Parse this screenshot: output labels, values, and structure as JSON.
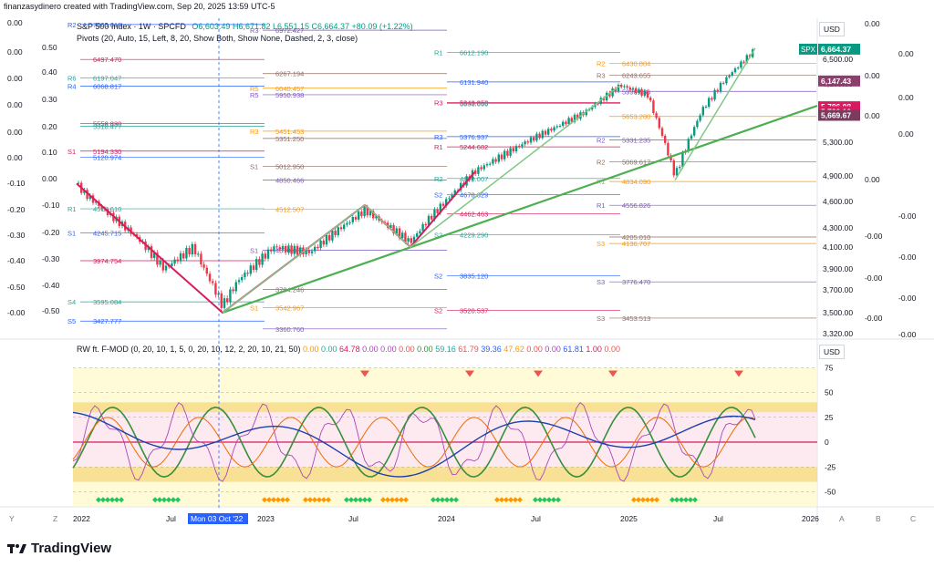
{
  "header": {
    "credit": "finanzasydinero created with TradingView.com, Sep 20, 2025 13:59 UTC-5",
    "symbol_line": "S&P 500 Index · 1W · SPCFD",
    "ohlc": "O6,603.49 H6,671.82 L6,551.15 C6,664.37 +80.09 (+1.22%)",
    "pivots_label": "Pivots (20, Auto, 15, Left, 8, 20, Show Both, Show None, Dashed, 2, 3, close)",
    "indicator_label": "RW ft. F-MOD (0, 20, 10, 1, 5, 0, 20, 10, 12, 2, 20, 10, 21, 50)",
    "indicator_values": [
      "0.00",
      "0.00",
      "64.78",
      "0.00",
      "0.00",
      "0.00",
      "0.00",
      "59.16",
      "61.79",
      "39.36",
      "47.62",
      "0.00",
      "0.00",
      "61.81",
      "1.00",
      "0.00"
    ]
  },
  "colors": {
    "bull": "#26a69a",
    "bear": "#ef5350",
    "candle_up": "#089981",
    "candle_dn": "#f23645",
    "trend_green": "#4caf50",
    "trend_magenta": "#d81b60",
    "light_green": "#81c784",
    "accent_blue": "#2962ff"
  },
  "chart_data": [
    {
      "type": "candlestick",
      "title": "S&P 500 Index",
      "interval": "1W",
      "symbol": "SPX",
      "currency": "USD",
      "last_close": 6664.37,
      "ylim": [
        3320,
        7050
      ],
      "y_ticks": [
        6500,
        6100,
        5300,
        4900,
        4600,
        4300,
        4100,
        3900,
        3700,
        3500,
        3320
      ],
      "x_ticks": [
        "2022",
        "Jul",
        "Mon 03 Oct '22",
        "2023",
        "Jul",
        "2024",
        "Jul",
        "2025",
        "Jul",
        "2026"
      ],
      "price_tags": [
        {
          "label": "SPX",
          "value": "6,664.37",
          "color": "#089981"
        },
        {
          "label": "",
          "value": "6,147.43",
          "color": "#8e3e6d"
        },
        {
          "label": "",
          "value": "5,786.08",
          "color": "#d81b60"
        },
        {
          "label": "",
          "value": "5,720.10",
          "color": "#d81b60"
        },
        {
          "label": "",
          "value": "5,669.67",
          "color": "#7b3a5e"
        }
      ],
      "pivot_levels": [
        {
          "name": "R2",
          "value": "7065.010"
        },
        {
          "name": "R3",
          "value": "6972.427"
        },
        {
          "name": "R1",
          "value": "6612.190"
        },
        {
          "name": "R2",
          "value": "6430.804"
        },
        {
          "name": "",
          "value": "6497.470"
        },
        {
          "name": "",
          "value": "6267.194"
        },
        {
          "name": "",
          "value": "6131.940"
        },
        {
          "name": "",
          "value": "5996.686"
        },
        {
          "name": "R6",
          "value": "6197.047"
        },
        {
          "name": "R5",
          "value": "6040.457"
        },
        {
          "name": "R3",
          "value": "5843.850"
        },
        {
          "name": "R3",
          "value": "6243.655"
        },
        {
          "name": "R4",
          "value": "6068.817"
        },
        {
          "name": "R5",
          "value": "5950.938"
        },
        {
          "name": "",
          "value": "5833.060"
        },
        {
          "name": "",
          "value": "5653.280"
        },
        {
          "name": "",
          "value": "5558.830"
        },
        {
          "name": "",
          "value": "5351.250"
        },
        {
          "name": "R3",
          "value": "5376.937"
        },
        {
          "name": "R2",
          "value": "5331.235"
        },
        {
          "name": "",
          "value": "5518.477"
        },
        {
          "name": "R3",
          "value": "5451.453"
        },
        {
          "name": "R1",
          "value": "5244.682"
        },
        {
          "name": "R2",
          "value": "5069.617"
        },
        {
          "name": "",
          "value": "5120.974"
        },
        {
          "name": "",
          "value": "4850.466"
        },
        {
          "name": "R2",
          "value": "4870.007"
        },
        {
          "name": "R1",
          "value": "4834.090"
        },
        {
          "name": "S1",
          "value": "5194.330"
        },
        {
          "name": "S1",
          "value": "5012.950"
        },
        {
          "name": "S2",
          "value": "4678.329"
        },
        {
          "name": "R1",
          "value": "4556.826"
        },
        {
          "name": "R1",
          "value": "4516.610"
        },
        {
          "name": "",
          "value": "4512.507"
        },
        {
          "name": "",
          "value": "4462.463"
        },
        {
          "name": "",
          "value": "4205.010"
        },
        {
          "name": "S1",
          "value": "4245.715"
        },
        {
          "name": "S1",
          "value": "4070.877"
        },
        {
          "name": "S2",
          "value": "4229.290"
        },
        {
          "name": "S3",
          "value": "4136.707"
        },
        {
          "name": "",
          "value": "3974.754"
        },
        {
          "name": "",
          "value": "3704.246"
        },
        {
          "name": "S2",
          "value": "3835.120"
        },
        {
          "name": "S3",
          "value": "3776.470"
        },
        {
          "name": "S4",
          "value": "3595.084"
        },
        {
          "name": "S1",
          "value": "3542.967"
        },
        {
          "name": "S2",
          "value": "3520.537"
        },
        {
          "name": "S3",
          "value": "3453.513"
        },
        {
          "name": "S5",
          "value": "3427.777"
        },
        {
          "name": "",
          "value": "3360.760"
        }
      ],
      "left_axis": [
        "0.50",
        "0.40",
        "0.30",
        "0.20",
        "0.10",
        "0.00",
        "-0.10",
        "-0.20",
        "-0.30",
        "-0.40",
        "-0.50"
      ],
      "right_extra_axis": [
        "0.00",
        "0.00",
        "0.00",
        "0.00",
        "0.00",
        "0.00",
        "0.00",
        "-0.00",
        "-0.00",
        "-0.00",
        "-0.00",
        "-0.00",
        "-0.00",
        "-0.00"
      ]
    },
    {
      "type": "line",
      "title": "RW ft. F-MOD",
      "ylim": [
        -60,
        80
      ],
      "y_ticks": [
        75,
        50,
        25,
        0,
        -25,
        -50
      ]
    }
  ],
  "footer": {
    "brand": "TradingView",
    "axis_letters": [
      "Y",
      "Z",
      "A",
      "B",
      "C"
    ]
  }
}
